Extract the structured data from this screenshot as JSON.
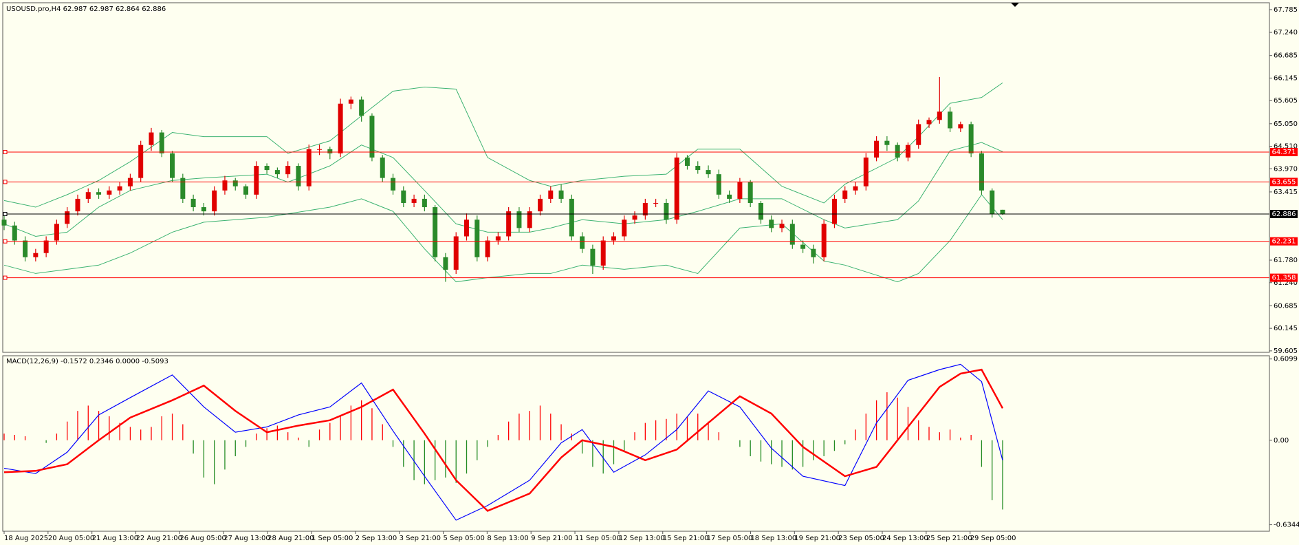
{
  "chart_data": [
    {
      "type": "candlestick",
      "title": "USOUSD.pro,H4  62.987 62.987 62.864 62.886",
      "up_color": "#e00000",
      "down_color": "#2a8a2a",
      "open": [
        62.75,
        62.61,
        62.25,
        61.85,
        61.95,
        62.25,
        62.65,
        62.95,
        63.25,
        63.41,
        63.35,
        63.45,
        63.55,
        63.75,
        64.54,
        64.84,
        64.34,
        63.75,
        63.25,
        63.05,
        62.95,
        63.45,
        63.69,
        63.55,
        63.35,
        64.04,
        63.94,
        63.84,
        64.04,
        63.55,
        64.44,
        64.44,
        64.34,
        65.53,
        65.63,
        65.24,
        64.24,
        63.75,
        63.45,
        63.15,
        63.25,
        63.05,
        61.85,
        61.55,
        62.35,
        62.75,
        61.85,
        62.25,
        62.35,
        62.95,
        62.55,
        62.95,
        63.25,
        63.45,
        63.25,
        62.35,
        62.05,
        61.65,
        62.25,
        62.35,
        62.75,
        62.85,
        63.15,
        63.15,
        62.75,
        64.24,
        64.04,
        63.94,
        63.84,
        63.35,
        63.25,
        63.65,
        63.15,
        62.75,
        62.55,
        62.65,
        62.15,
        62.05,
        61.85,
        62.65,
        63.25,
        63.45,
        63.55,
        64.24,
        64.64,
        64.54,
        64.24,
        64.54,
        65.04,
        65.14,
        65.34,
        64.94,
        65.04,
        64.34,
        63.45,
        62.987
      ],
      "high": [
        62.85,
        62.7,
        62.35,
        62.05,
        62.35,
        62.75,
        63.05,
        63.35,
        63.5,
        63.5,
        63.55,
        63.65,
        63.85,
        64.64,
        64.95,
        64.9,
        64.4,
        63.85,
        63.35,
        63.15,
        63.55,
        63.8,
        63.75,
        63.6,
        64.15,
        64.1,
        64.0,
        64.15,
        64.1,
        64.55,
        64.55,
        64.5,
        65.65,
        65.7,
        65.7,
        65.3,
        64.3,
        63.85,
        63.55,
        63.35,
        63.35,
        63.1,
        61.95,
        62.45,
        62.9,
        62.85,
        62.35,
        62.45,
        63.05,
        63.05,
        63.05,
        63.35,
        63.55,
        63.6,
        63.35,
        62.45,
        62.15,
        62.35,
        62.45,
        62.85,
        62.95,
        63.25,
        63.25,
        63.25,
        64.35,
        64.3,
        64.15,
        64.05,
        63.95,
        63.45,
        63.75,
        63.7,
        63.2,
        62.85,
        62.75,
        62.75,
        62.25,
        62.15,
        62.75,
        63.35,
        63.55,
        63.65,
        64.35,
        64.75,
        64.75,
        64.6,
        64.6,
        65.15,
        65.2,
        66.17,
        65.45,
        65.1,
        65.1,
        64.4,
        63.5,
        62.987
      ],
      "low": [
        62.5,
        62.15,
        61.75,
        61.75,
        61.85,
        62.15,
        62.55,
        62.85,
        63.15,
        63.25,
        63.25,
        63.35,
        63.45,
        63.65,
        64.4,
        64.25,
        63.65,
        63.15,
        62.95,
        62.85,
        62.85,
        63.35,
        63.45,
        63.25,
        63.25,
        63.85,
        63.75,
        63.75,
        63.45,
        63.45,
        64.3,
        64.2,
        64.25,
        65.4,
        65.1,
        64.15,
        63.65,
        63.35,
        63.05,
        63.05,
        62.95,
        61.75,
        61.26,
        61.45,
        62.25,
        61.75,
        61.75,
        62.15,
        62.25,
        62.45,
        62.45,
        62.85,
        63.15,
        63.15,
        62.25,
        61.95,
        61.45,
        61.55,
        62.15,
        62.25,
        62.65,
        62.75,
        63.05,
        62.65,
        62.65,
        63.95,
        63.85,
        63.75,
        63.25,
        63.15,
        63.15,
        63.05,
        62.65,
        62.45,
        62.45,
        62.05,
        61.95,
        61.7,
        61.75,
        62.55,
        63.15,
        63.35,
        63.45,
        64.15,
        64.4,
        64.15,
        64.15,
        64.45,
        64.95,
        65.05,
        64.85,
        64.85,
        64.25,
        63.35,
        62.8,
        62.864
      ],
      "close": [
        62.61,
        62.25,
        61.85,
        61.95,
        62.25,
        62.65,
        62.95,
        63.25,
        63.41,
        63.35,
        63.45,
        63.55,
        63.75,
        64.54,
        64.84,
        64.34,
        63.75,
        63.25,
        63.05,
        62.95,
        63.45,
        63.69,
        63.55,
        63.35,
        64.04,
        63.94,
        63.84,
        64.04,
        63.55,
        64.44,
        64.44,
        64.34,
        65.53,
        65.63,
        65.24,
        64.24,
        63.75,
        63.45,
        63.15,
        63.25,
        63.05,
        61.85,
        61.55,
        62.35,
        62.75,
        61.85,
        62.25,
        62.35,
        62.95,
        62.55,
        62.95,
        63.25,
        63.45,
        63.25,
        62.35,
        62.05,
        61.65,
        62.25,
        62.35,
        62.75,
        62.85,
        63.15,
        63.15,
        62.75,
        64.24,
        64.04,
        63.94,
        63.84,
        63.35,
        63.25,
        63.65,
        63.15,
        62.75,
        62.55,
        62.65,
        62.15,
        62.05,
        61.85,
        62.65,
        63.25,
        63.45,
        63.55,
        64.24,
        64.64,
        64.54,
        64.24,
        64.54,
        65.04,
        65.14,
        65.34,
        64.94,
        65.04,
        64.34,
        63.45,
        62.89,
        62.886
      ],
      "bands": {
        "color": "#3cb371",
        "x": [
          0,
          3,
          6,
          9,
          12,
          16,
          19,
          25,
          27,
          31,
          34,
          37,
          40,
          43,
          46,
          50,
          52,
          55,
          59,
          63,
          66,
          70,
          74,
          78,
          80,
          85,
          87,
          90,
          93,
          95
        ],
        "upper": [
          63.21,
          63.05,
          63.35,
          63.69,
          64.14,
          64.84,
          64.74,
          64.74,
          64.34,
          64.64,
          65.24,
          65.83,
          65.93,
          65.88,
          64.24,
          63.69,
          63.55,
          63.69,
          63.79,
          63.84,
          64.44,
          64.44,
          63.55,
          63.15,
          63.6,
          64.24,
          64.74,
          65.54,
          65.68,
          66.03
        ],
        "middle": [
          62.65,
          62.35,
          62.45,
          63.05,
          63.45,
          63.69,
          63.75,
          63.84,
          63.65,
          64.04,
          64.54,
          64.24,
          63.45,
          62.65,
          62.45,
          62.45,
          62.55,
          62.75,
          62.65,
          62.75,
          62.95,
          63.25,
          63.25,
          62.75,
          62.55,
          62.75,
          63.2,
          64.4,
          64.6,
          64.38
        ],
        "lower": [
          61.66,
          61.46,
          61.56,
          61.66,
          61.95,
          62.45,
          62.69,
          62.81,
          62.89,
          63.05,
          63.25,
          62.95,
          62.05,
          61.26,
          61.36,
          61.46,
          61.46,
          61.66,
          61.56,
          61.66,
          61.46,
          62.55,
          62.65,
          61.76,
          61.66,
          61.26,
          61.46,
          62.25,
          63.35,
          62.75
        ]
      },
      "levels": [
        {
          "value": 64.371,
          "color": "#ff0000"
        },
        {
          "value": 63.655,
          "color": "#ff0000"
        },
        {
          "value": 62.886,
          "color": "#000000"
        },
        {
          "value": 62.231,
          "color": "#ff0000"
        },
        {
          "value": 61.358,
          "color": "#ff0000"
        }
      ],
      "ylim": [
        59.57,
        67.95
      ],
      "yticks": [
        67.785,
        {
          "value": 67.24,
          "label": "67.240"
        },
        66.685,
        66.145,
        65.605,
        {
          "value": 65.05,
          "label": "65.050"
        },
        {
          "value": 64.51,
          "label": "64.510"
        },
        {
          "value": 63.97,
          "label": "63.970"
        },
        63.415,
        {
          "value": 61.78,
          "label": "61.780"
        },
        {
          "value": 61.24,
          "label": "61.240"
        },
        60.685,
        60.145,
        59.605
      ],
      "x_labels": [
        "18 Aug 2025",
        "20 Aug 05:00",
        "21 Aug 13:00",
        "22 Aug 21:00",
        "26 Aug 05:00",
        "27 Aug 13:00",
        "28 Aug 21:00",
        "1 Sep 05:00",
        "2 Sep 13:00",
        "3 Sep 21:00",
        "5 Sep 05:00",
        "8 Sep 13:00",
        "9 Sep 21:00",
        "11 Sep 05:00",
        "12 Sep 13:00",
        "15 Sep 21:00",
        "17 Sep 05:00",
        "18 Sep 13:00",
        "19 Sep 21:00",
        "23 Sep 05:00",
        "24 Sep 13:00",
        "25 Sep 21:00",
        "29 Sep 05:00"
      ]
    },
    {
      "type": "macd",
      "title": "MACD(12,26,9) -0.1572 0.2346 0.0000 -0.5093",
      "up_color": "#ff0000",
      "down_color": "#228b22",
      "histogram": [
        0.05,
        0.04,
        0.03,
        0.0,
        -0.02,
        0.05,
        0.14,
        0.22,
        0.26,
        0.22,
        0.18,
        0.13,
        0.1,
        0.08,
        0.1,
        0.18,
        0.2,
        0.12,
        -0.1,
        -0.28,
        -0.33,
        -0.22,
        -0.12,
        -0.05,
        0.05,
        0.09,
        0.11,
        0.06,
        0.02,
        -0.05,
        0.08,
        0.13,
        0.18,
        0.26,
        0.3,
        0.24,
        0.12,
        -0.05,
        -0.2,
        -0.3,
        -0.33,
        -0.3,
        -0.28,
        -0.32,
        -0.25,
        -0.15,
        -0.05,
        0.04,
        0.14,
        0.2,
        0.22,
        0.26,
        0.2,
        0.12,
        0.05,
        -0.1,
        -0.2,
        -0.25,
        -0.18,
        -0.08,
        0.06,
        0.13,
        0.15,
        0.16,
        0.2,
        0.18,
        0.2,
        0.14,
        0.06,
        0.0,
        -0.05,
        -0.12,
        -0.16,
        -0.18,
        -0.2,
        -0.22,
        -0.2,
        -0.15,
        -0.12,
        -0.08,
        -0.03,
        0.08,
        0.2,
        0.3,
        0.36,
        0.32,
        0.25,
        0.15,
        0.1,
        0.06,
        0.08,
        0.02,
        0.04,
        -0.2,
        -0.45,
        -0.52
      ],
      "x": [
        0,
        3,
        6,
        9,
        12,
        16,
        19,
        22,
        25,
        28,
        31,
        34,
        37,
        40,
        43,
        46,
        50,
        53,
        55,
        58,
        61,
        64,
        67,
        70,
        73,
        76,
        80,
        83,
        86,
        89,
        91,
        93,
        95
      ],
      "series": [
        {
          "color": "#0000ff",
          "values": [
            -0.21,
            -0.25,
            -0.09,
            0.19,
            0.32,
            0.49,
            0.25,
            0.06,
            0.1,
            0.19,
            0.25,
            0.43,
            0.07,
            -0.27,
            -0.6,
            -0.49,
            -0.3,
            -0.02,
            0.08,
            -0.24,
            -0.11,
            0.08,
            0.37,
            0.25,
            -0.06,
            -0.27,
            -0.34,
            0.13,
            0.45,
            0.53,
            0.57,
            0.44,
            -0.15
          ]
        },
        {
          "color": "#ff0000",
          "values": [
            -0.24,
            -0.23,
            -0.18,
            0.0,
            0.17,
            0.3,
            0.41,
            0.22,
            0.06,
            0.11,
            0.15,
            0.25,
            0.38,
            0.05,
            -0.3,
            -0.53,
            -0.4,
            -0.13,
            0.0,
            -0.05,
            -0.15,
            -0.07,
            0.13,
            0.33,
            0.2,
            -0.05,
            -0.27,
            -0.2,
            0.1,
            0.4,
            0.5,
            0.53,
            0.24
          ]
        }
      ],
      "ylim": [
        -0.683,
        0.634
      ],
      "yticks": [
        0.6099,
        {
          "value": 0,
          "label": "0.00"
        },
        -0.6344
      ]
    }
  ]
}
